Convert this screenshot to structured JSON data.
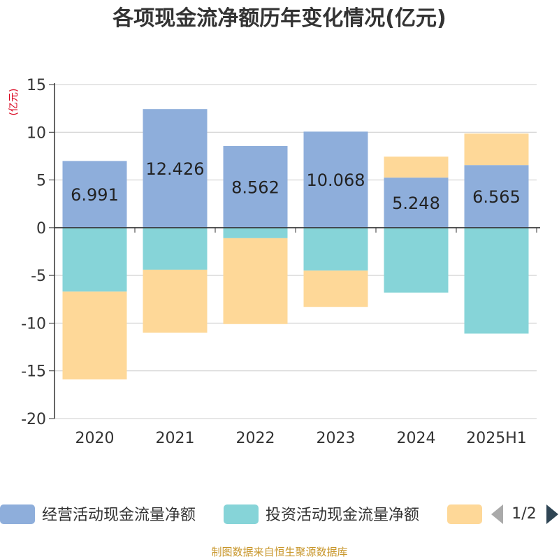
{
  "chart_data": {
    "type": "bar",
    "stacked": true,
    "title": "各项现金流净额历年变化情况(亿元)",
    "ylabel": "(亿元)",
    "categories": [
      "2020",
      "2021",
      "2022",
      "2023",
      "2024",
      "2025H1"
    ],
    "ylim": [
      -20,
      15
    ],
    "yticks": [
      15,
      10,
      5,
      0,
      -5,
      -10,
      -15,
      -20
    ],
    "grid": true,
    "series": [
      {
        "name": "经营活动现金流量净额",
        "color": "#8eaedb",
        "values": [
          6.991,
          12.426,
          8.562,
          10.068,
          5.248,
          6.565
        ],
        "labels": [
          "6.991",
          "12.426",
          "8.562",
          "10.068",
          "5.248",
          "6.565"
        ]
      },
      {
        "name": "投资活动现金流量净额",
        "color": "#86d4d8",
        "values": [
          -6.7,
          -4.4,
          -1.1,
          -4.5,
          -6.8,
          -11.1
        ]
      },
      {
        "name": "",
        "color": "#fed898",
        "values": [
          -9.2,
          -6.6,
          -9.0,
          -3.8,
          2.2,
          3.3
        ]
      }
    ],
    "legend": {
      "position": "bottom",
      "page": "1/2"
    },
    "source": "制图数据来自恒生聚源数据库"
  }
}
